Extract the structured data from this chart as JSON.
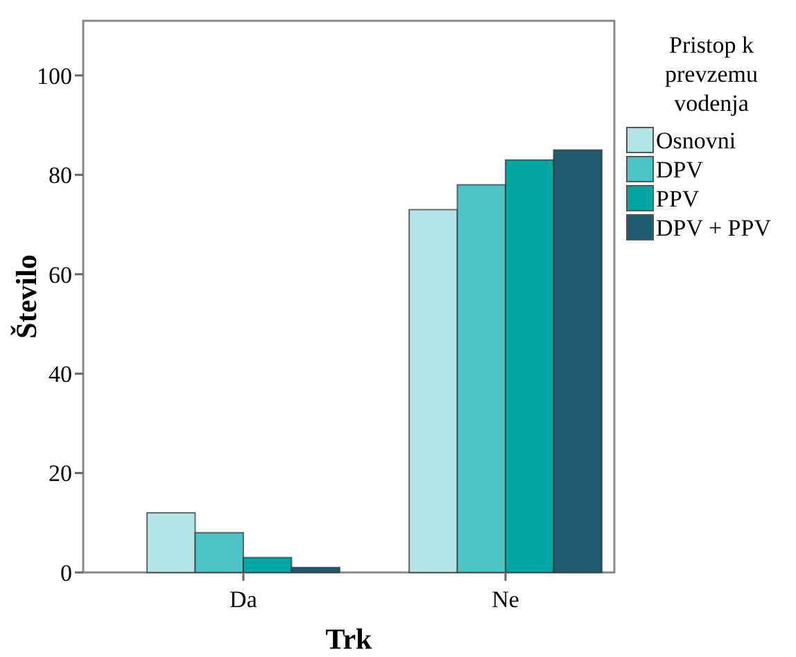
{
  "chart_data": {
    "type": "bar",
    "xlabel": "Trk",
    "ylabel": "Število",
    "legend_title": "Pristop k\nprevzemu\nvodenja",
    "categories": [
      "Da",
      "Ne"
    ],
    "series": [
      {
        "name": "Osnovni",
        "color": "#b3e5e6",
        "values": [
          12,
          73
        ]
      },
      {
        "name": "DPV",
        "color": "#4cc3c5",
        "values": [
          8,
          78
        ]
      },
      {
        "name": "PPV",
        "color": "#00a6a2",
        "values": [
          3,
          83
        ]
      },
      {
        "name": "DPV + PPV",
        "color": "#1d5b70",
        "values": [
          1,
          85
        ]
      }
    ],
    "ylim": [
      0,
      111
    ],
    "yticks": [
      0,
      20,
      40,
      60,
      80,
      100
    ],
    "grid": false,
    "legend": "right"
  }
}
